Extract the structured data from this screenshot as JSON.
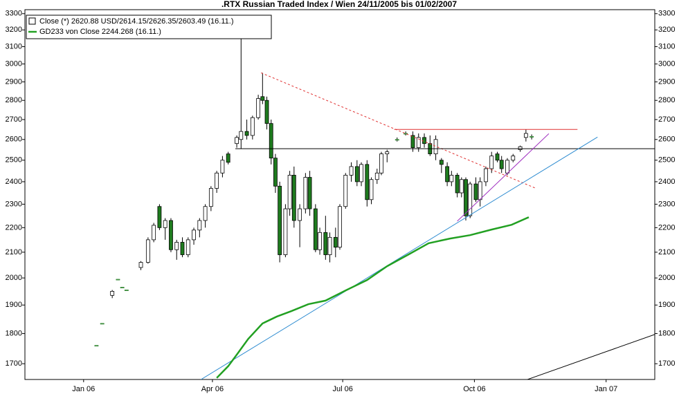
{
  "chart_data": {
    "type": "candlestick",
    "title": ".RTX Russian Traded Index / Wien 24/11/2005 bis 01/02/2007",
    "ylog": true,
    "ylim": [
      1650,
      3325
    ],
    "yticks": [
      1700,
      1800,
      1900,
      2000,
      2100,
      2200,
      2300,
      2400,
      2500,
      2600,
      2700,
      2800,
      2900,
      3000,
      3100,
      3200,
      3300
    ],
    "xlim": [
      "2005-11-21",
      "2007-02-04"
    ],
    "xticks": [
      {
        "value": "2006-01-01",
        "label": "Jan 06"
      },
      {
        "value": "2006-04-01",
        "label": "Apr 06"
      },
      {
        "value": "2006-07-01",
        "label": "Jul 06"
      },
      {
        "value": "2006-10-01",
        "label": "Oct 06"
      },
      {
        "value": "2007-01-01",
        "label": "Jan 07"
      }
    ],
    "grid": false,
    "legend": "top-left",
    "up_color": "#ffffff",
    "down_color": "#1e7b1e",
    "candles": {
      "name": "Close (*) 2620.88 USD/2614.15/2626.35/2603.49 (16.11.)",
      "x": [
        "2006-01-10",
        "2006-01-14",
        "2006-01-21",
        "2006-01-25",
        "2006-01-28",
        "2006-01-31",
        "2006-02-10",
        "2006-02-15",
        "2006-02-19",
        "2006-02-23",
        "2006-02-27",
        "2006-03-03",
        "2006-03-07",
        "2006-03-11",
        "2006-03-15",
        "2006-03-19",
        "2006-03-23",
        "2006-03-27",
        "2006-03-31",
        "2006-04-04",
        "2006-04-08",
        "2006-04-12",
        "2006-04-18",
        "2006-04-21",
        "2006-04-25",
        "2006-04-29",
        "2006-05-03",
        "2006-05-06",
        "2006-05-09",
        "2006-05-12",
        "2006-05-15",
        "2006-05-18",
        "2006-05-22",
        "2006-05-25",
        "2006-05-28",
        "2006-06-01",
        "2006-06-05",
        "2006-06-08",
        "2006-06-12",
        "2006-06-15",
        "2006-06-19",
        "2006-06-22",
        "2006-06-26",
        "2006-06-29",
        "2006-07-03",
        "2006-07-07",
        "2006-07-11",
        "2006-07-14",
        "2006-07-18",
        "2006-07-21",
        "2006-07-25",
        "2006-07-28",
        "2006-08-01",
        "2006-08-08",
        "2006-08-14",
        "2006-08-19",
        "2006-08-23",
        "2006-08-27",
        "2006-08-31",
        "2006-09-04",
        "2006-09-08",
        "2006-09-12",
        "2006-09-15",
        "2006-09-19",
        "2006-09-22",
        "2006-09-25",
        "2006-09-28",
        "2006-10-02",
        "2006-10-05",
        "2006-10-09",
        "2006-10-13",
        "2006-10-17",
        "2006-10-20",
        "2006-10-24",
        "2006-10-28",
        "2006-11-02",
        "2006-11-06",
        "2006-11-10"
      ],
      "open": [
        1760,
        1835,
        1935,
        1995,
        1965,
        1955,
        2040,
        2060,
        2150,
        2290,
        2200,
        2230,
        2110,
        2140,
        2090,
        2150,
        2190,
        2230,
        2290,
        2370,
        2440,
        2530,
        2580,
        2600,
        2640,
        2620,
        2710,
        2820,
        2800,
        2680,
        2510,
        2380,
        2090,
        2280,
        2430,
        2230,
        2280,
        2420,
        2280,
        2110,
        2180,
        2090,
        2160,
        2120,
        2290,
        2430,
        2470,
        2400,
        2480,
        2320,
        2410,
        2440,
        2530,
        2600,
        2630,
        2620,
        2560,
        2610,
        2580,
        2530,
        2500,
        2470,
        2400,
        2430,
        2350,
        2410,
        2250,
        2390,
        2320,
        2400,
        2460,
        2530,
        2500,
        2440,
        2500,
        2550,
        2610,
        2615
      ],
      "high": [
        1760,
        1835,
        1955,
        1995,
        1965,
        1955,
        2065,
        2160,
        2220,
        2300,
        2240,
        2240,
        2150,
        2160,
        2160,
        2200,
        2240,
        2300,
        2380,
        2450,
        2520,
        2540,
        2620,
        3150,
        2700,
        2720,
        2830,
        2950,
        2820,
        2700,
        2530,
        2400,
        2300,
        2450,
        2470,
        2300,
        2440,
        2450,
        2300,
        2200,
        2250,
        2180,
        2200,
        2300,
        2440,
        2490,
        2500,
        2490,
        2500,
        2420,
        2460,
        2540,
        2550,
        2610,
        2640,
        2640,
        2630,
        2630,
        2620,
        2620,
        2510,
        2490,
        2450,
        2440,
        2420,
        2420,
        2400,
        2420,
        2420,
        2470,
        2540,
        2540,
        2520,
        2510,
        2530,
        2570,
        2650,
        2625
      ],
      "low": [
        1760,
        1835,
        1925,
        1995,
        1965,
        1955,
        2030,
        2055,
        2140,
        2190,
        2150,
        2100,
        2070,
        2080,
        2080,
        2130,
        2160,
        2200,
        2270,
        2350,
        2420,
        2480,
        2560,
        2555,
        2600,
        2600,
        2700,
        2780,
        2650,
        2480,
        2350,
        2060,
        2080,
        2250,
        2200,
        2120,
        2260,
        2250,
        2100,
        2090,
        2070,
        2060,
        2080,
        2110,
        2280,
        2400,
        2380,
        2380,
        2290,
        2300,
        2390,
        2430,
        2490,
        2590,
        2620,
        2540,
        2540,
        2560,
        2520,
        2500,
        2440,
        2380,
        2380,
        2330,
        2330,
        2230,
        2240,
        2310,
        2290,
        2380,
        2440,
        2490,
        2440,
        2430,
        2490,
        2540,
        2590,
        2600
      ],
      "close": [
        1760,
        1835,
        1950,
        1995,
        1965,
        1955,
        2060,
        2150,
        2210,
        2200,
        2230,
        2110,
        2140,
        2090,
        2150,
        2190,
        2230,
        2290,
        2370,
        2440,
        2500,
        2490,
        2610,
        2640,
        2620,
        2710,
        2810,
        2800,
        2680,
        2510,
        2380,
        2090,
        2280,
        2430,
        2230,
        2280,
        2420,
        2280,
        2110,
        2180,
        2090,
        2160,
        2120,
        2290,
        2430,
        2470,
        2400,
        2480,
        2320,
        2410,
        2440,
        2530,
        2540,
        2600,
        2630,
        2560,
        2610,
        2580,
        2530,
        2600,
        2480,
        2400,
        2430,
        2350,
        2410,
        2250,
        2390,
        2320,
        2400,
        2460,
        2520,
        2500,
        2460,
        2500,
        2520,
        2565,
        2630,
        2615
      ]
    },
    "series": [
      {
        "name": "GD233 von Close 2244.268 (16.11.)",
        "color": "#22a022",
        "x": [
          "2006-04-04",
          "2006-04-12",
          "2006-04-19",
          "2006-04-26",
          "2006-05-06",
          "2006-05-16",
          "2006-05-26",
          "2006-06-07",
          "2006-06-19",
          "2006-07-03",
          "2006-07-18",
          "2006-08-01",
          "2006-08-16",
          "2006-08-30",
          "2006-09-14",
          "2006-09-28",
          "2006-10-13",
          "2006-10-27",
          "2006-11-08"
        ],
        "values": [
          1655,
          1692,
          1736,
          1782,
          1835,
          1859,
          1878,
          1903,
          1916,
          1953,
          1992,
          2045,
          2091,
          2136,
          2155,
          2169,
          2192,
          2212,
          2244
        ]
      }
    ],
    "trendlines": [
      {
        "color": "#e03030",
        "dash": true,
        "x": [
          "2006-05-05",
          "2006-11-13"
        ],
        "y": [
          2950,
          2370
        ]
      },
      {
        "color": "#e03030",
        "dash": false,
        "x": [
          "2006-08-06",
          "2006-12-12"
        ],
        "y": [
          2650,
          2650
        ]
      },
      {
        "color": "#000000",
        "dash": false,
        "x": [
          "2006-04-17",
          "2007-02-04"
        ],
        "y": [
          2555,
          2555
        ]
      },
      {
        "color": "#2a8ad0",
        "dash": false,
        "x": [
          "2006-03-24",
          "2006-12-26"
        ],
        "y": [
          1650,
          2612
        ]
      },
      {
        "color": "#a030c0",
        "dash": false,
        "x": [
          "2006-09-19",
          "2006-11-22"
        ],
        "y": [
          2227,
          2629
        ]
      },
      {
        "color": "#000000",
        "dash": false,
        "x": [
          "2006-11-07",
          "2007-02-04"
        ],
        "y": [
          1650,
          1797
        ]
      }
    ]
  }
}
